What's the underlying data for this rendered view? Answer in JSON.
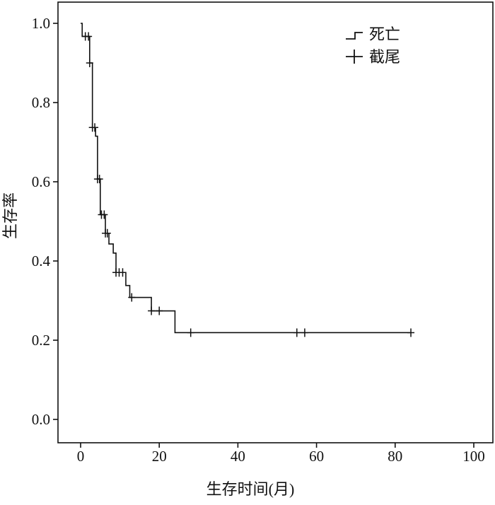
{
  "chart_data": {
    "type": "line",
    "title": "",
    "xlabel": "生存时间(月)",
    "ylabel": "生存率",
    "xlim": [
      0,
      100
    ],
    "ylim": [
      0,
      1.0
    ],
    "xticks": [
      0,
      20,
      40,
      60,
      80,
      100
    ],
    "yticks": [
      0.0,
      0.2,
      0.4,
      0.6,
      0.8,
      1.0
    ],
    "xtick_labels": [
      "0",
      "20",
      "40",
      "60",
      "80",
      "100"
    ],
    "ytick_labels": [
      "0.0",
      "0.2",
      "0.4",
      "0.6",
      "0.8",
      "1.0"
    ],
    "grid": false,
    "legend_position": "top-right",
    "legend": [
      {
        "label": "死亡",
        "marker": "step"
      },
      {
        "label": "截尾",
        "marker": "cross"
      }
    ],
    "series": [
      {
        "step": [
          [
            0.0,
            1.0
          ],
          [
            0.4,
            0.967
          ],
          [
            2.3,
            0.9
          ],
          [
            3.0,
            0.737
          ],
          [
            3.8,
            0.715
          ],
          [
            4.3,
            0.607
          ],
          [
            5.0,
            0.517
          ],
          [
            6.3,
            0.47
          ],
          [
            7.2,
            0.443
          ],
          [
            8.3,
            0.42
          ],
          [
            9.0,
            0.371
          ],
          [
            11.5,
            0.338
          ],
          [
            12.5,
            0.308
          ],
          [
            18.0,
            0.274
          ],
          [
            24.0,
            0.219
          ],
          [
            84.0,
            0.219
          ]
        ],
        "censored": [
          {
            "x": 1.2,
            "y": 0.967
          },
          {
            "x": 2.0,
            "y": 0.967
          },
          {
            "x": 2.3,
            "y": 0.9
          },
          {
            "x": 3.0,
            "y": 0.737
          },
          {
            "x": 3.6,
            "y": 0.737
          },
          {
            "x": 4.3,
            "y": 0.607
          },
          {
            "x": 4.8,
            "y": 0.607
          },
          {
            "x": 5.3,
            "y": 0.517
          },
          {
            "x": 6.0,
            "y": 0.517
          },
          {
            "x": 6.3,
            "y": 0.47
          },
          {
            "x": 6.8,
            "y": 0.47
          },
          {
            "x": 9.0,
            "y": 0.371
          },
          {
            "x": 9.8,
            "y": 0.371
          },
          {
            "x": 10.7,
            "y": 0.371
          },
          {
            "x": 13.0,
            "y": 0.308
          },
          {
            "x": 18.0,
            "y": 0.274
          },
          {
            "x": 20.0,
            "y": 0.274
          },
          {
            "x": 28.0,
            "y": 0.219
          },
          {
            "x": 55.0,
            "y": 0.219
          },
          {
            "x": 57.0,
            "y": 0.219
          },
          {
            "x": 84.0,
            "y": 0.219
          }
        ]
      }
    ]
  }
}
